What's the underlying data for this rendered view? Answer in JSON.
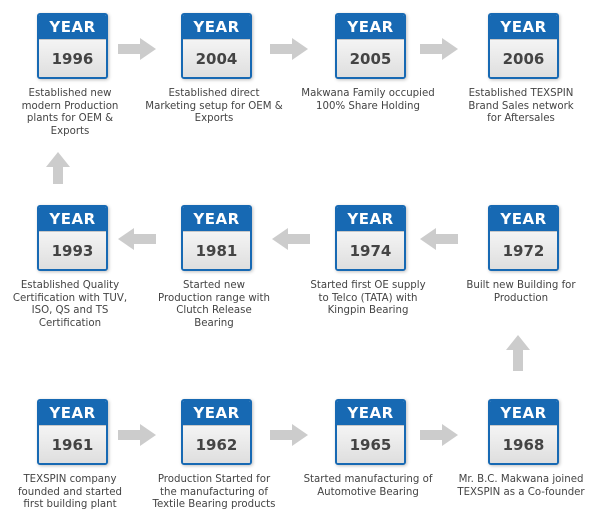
{
  "card_header": "YEAR",
  "colors": {
    "card_blue": "#1769b3",
    "arrow_gray": "#cccccc",
    "text": "#444444"
  },
  "row1": [
    {
      "year": "1996",
      "desc": "Established new modern Production plants for OEM & Exports"
    },
    {
      "year": "2004",
      "desc": "Established direct Marketing setup for OEM & Exports"
    },
    {
      "year": "2005",
      "desc": "Makwana Family occupied 100% Share Holding"
    },
    {
      "year": "2006",
      "desc": "Established TEXSPIN Brand Sales network for Aftersales"
    }
  ],
  "row2": [
    {
      "year": "1993",
      "desc": "Established Quality Certification with TUV, ISO, QS and TS Certification"
    },
    {
      "year": "1981",
      "desc": "Started new Production range with Clutch Release Bearing"
    },
    {
      "year": "1974",
      "desc": "Started first OE supply to Telco (TATA) with Kingpin Bearing"
    },
    {
      "year": "1972",
      "desc": "Built new Building for Production"
    }
  ],
  "row3": [
    {
      "year": "1961",
      "desc": "TEXSPIN company founded and started first building plant"
    },
    {
      "year": "1962",
      "desc": "Production Started for the manufacturing of Textile Bearing  products"
    },
    {
      "year": "1965",
      "desc": "Started manufacturing of Automotive Bearing"
    },
    {
      "year": "1968",
      "desc": "Mr. B.C. Makwana joined TEXSPIN as a Co-founder"
    }
  ]
}
